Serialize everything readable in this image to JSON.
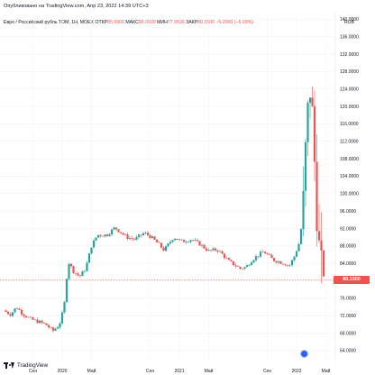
{
  "header": {
    "published": "Опубликовано на TradingView.com, Апр 23, 2022 14:39 UTC+3"
  },
  "legend": {
    "title": "Евро / Российский рубль TOM, 1Н, MOEX",
    "open_label": "ОТКР",
    "open_value": "85.0900",
    "high_label": "МАКС",
    "high_value": "85.0900",
    "low_label": "МИН",
    "low_value": "77.9500",
    "close_label": "ЗАКР",
    "close_value": "80.1500",
    "change": "−5.2000 (−6.09%)"
  },
  "currency": "RUB",
  "branding": "TradingView",
  "colors": {
    "up": "#26a69a",
    "down": "#ef5350",
    "grid": "#eef0f3",
    "text": "#131722",
    "last_price_line": "#ef5350"
  },
  "chart_data": {
    "type": "candlestick",
    "symbol": "EURRUB_TOM",
    "timeframe": "1Н",
    "last_price": 80.15,
    "last_price_label": "80.1500",
    "y_ticks": [
      64,
      68,
      72,
      76,
      84,
      88,
      92,
      96,
      100,
      104,
      108,
      112,
      116,
      120,
      124,
      128,
      132,
      136,
      140
    ],
    "y_tick_labels": [
      "64.0000",
      "68.0000",
      "72.0000",
      "76.0000",
      "84.0000",
      "88.0000",
      "92.0000",
      "96.0000",
      "100.0000",
      "104.0000",
      "108.0000",
      "112.0000",
      "116.0000",
      "120.0000",
      "124.0000",
      "128.0000",
      "132.0000",
      "136.0000",
      "140.0000"
    ],
    "ylim": [
      61.5,
      141.5
    ],
    "x_labels": [
      "Сен",
      "2020",
      "Май",
      "Сен",
      "2021",
      "Май",
      "Сен",
      "2022",
      "Май"
    ],
    "x_label_positions": [
      0.25,
      0.5,
      0.75,
      1.25,
      1.5,
      1.75,
      2.25,
      2.5,
      2.75
    ],
    "x_axis_start": "2019-06",
    "x_axis_end": "2022-06",
    "anchors": [
      [
        0.0,
        73.2
      ],
      [
        0.06,
        72.3
      ],
      [
        0.11,
        74.0
      ],
      [
        0.16,
        72.5
      ],
      [
        0.23,
        71.2
      ],
      [
        0.3,
        70.6
      ],
      [
        0.36,
        70.0
      ],
      [
        0.42,
        68.5
      ],
      [
        0.47,
        69.8
      ],
      [
        0.49,
        71.0
      ],
      [
        0.52,
        75.0
      ],
      [
        0.55,
        84.5
      ],
      [
        0.6,
        82.0
      ],
      [
        0.65,
        81.0
      ],
      [
        0.7,
        82.8
      ],
      [
        0.75,
        88.0
      ],
      [
        0.8,
        90.5
      ],
      [
        0.88,
        90.5
      ],
      [
        0.95,
        92.2
      ],
      [
        1.05,
        90.0
      ],
      [
        1.12,
        89.5
      ],
      [
        1.2,
        91.0
      ],
      [
        1.25,
        90.2
      ],
      [
        1.32,
        88.5
      ],
      [
        1.37,
        87.0
      ],
      [
        1.45,
        90.0
      ],
      [
        1.52,
        89.0
      ],
      [
        1.6,
        89.5
      ],
      [
        1.67,
        88.5
      ],
      [
        1.75,
        86.8
      ],
      [
        1.82,
        87.2
      ],
      [
        1.87,
        86.0
      ],
      [
        1.92,
        84.5
      ],
      [
        2.02,
        82.8
      ],
      [
        2.07,
        83.2
      ],
      [
        2.12,
        84.8
      ],
      [
        2.18,
        86.0
      ],
      [
        2.22,
        86.7
      ],
      [
        2.3,
        84.8
      ],
      [
        2.37,
        84.2
      ],
      [
        2.44,
        83.5
      ],
      [
        2.48,
        85.5
      ],
      [
        2.52,
        88.5
      ],
      [
        2.55,
        94.0
      ],
      [
        2.58,
        112.0
      ],
      [
        2.61,
        125.0
      ],
      [
        2.64,
        117.0
      ],
      [
        2.67,
        96.0
      ],
      [
        2.7,
        85.0
      ],
      [
        2.74,
        80.15
      ]
    ]
  }
}
